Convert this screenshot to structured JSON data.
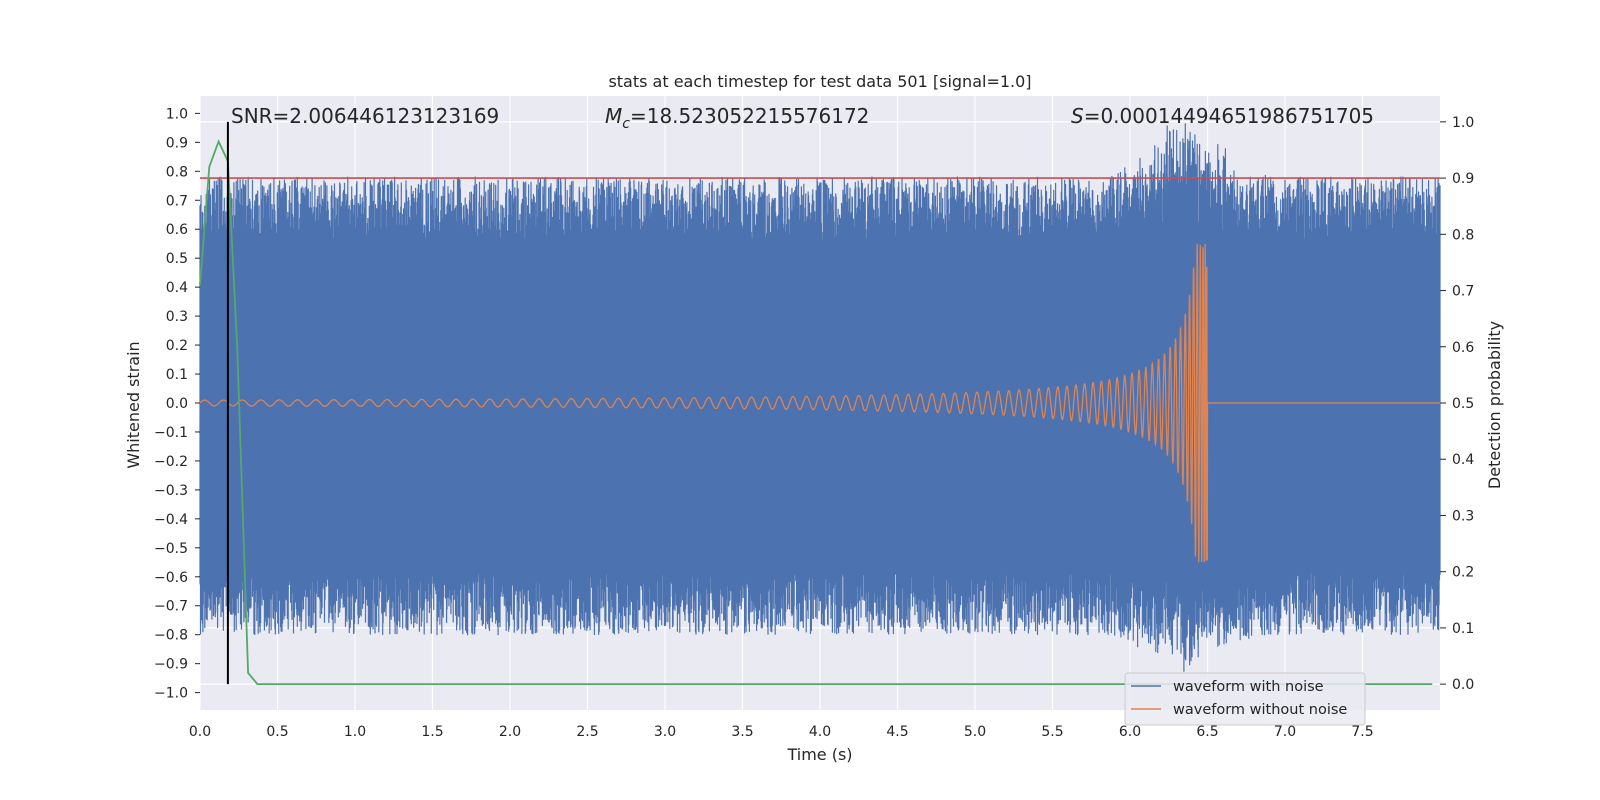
{
  "chart_data": {
    "type": "line",
    "title": "stats at each timestep for test data 501 [signal=1.0]",
    "xlabel": "Time (s)",
    "ylabel_left": "Whitened strain",
    "ylabel_right": "Detection probability",
    "xlim": [
      0.0,
      8.0
    ],
    "ylim_left": [
      -1.06,
      1.06
    ],
    "ylim_right": [
      -0.046,
      1.046
    ],
    "x_ticks": [
      0.0,
      0.5,
      1.0,
      1.5,
      2.0,
      2.5,
      3.0,
      3.5,
      4.0,
      4.5,
      5.0,
      5.5,
      6.0,
      6.5,
      7.0,
      7.5
    ],
    "x_tick_labels": [
      "0.0",
      "0.5",
      "1.0",
      "1.5",
      "2.0",
      "2.5",
      "3.0",
      "3.5",
      "4.0",
      "4.5",
      "5.0",
      "5.5",
      "6.0",
      "6.5",
      "7.0",
      "7.5"
    ],
    "y_left_ticks": [
      1.0,
      0.9,
      0.8,
      0.7,
      0.6,
      0.5,
      0.4,
      0.3,
      0.2,
      0.1,
      0.0,
      -0.1,
      -0.2,
      -0.3,
      -0.4,
      -0.5,
      -0.6,
      -0.7,
      -0.8,
      -0.9,
      -1.0
    ],
    "y_left_tick_labels": [
      "1.0",
      "0.9",
      "0.8",
      "0.7",
      "0.6",
      "0.5",
      "0.4",
      "0.3",
      "0.2",
      "0.1",
      "0.0",
      "−0.1",
      "−0.2",
      "−0.3",
      "−0.4",
      "−0.5",
      "−0.6",
      "−0.7",
      "−0.8",
      "−0.9",
      "−1.0"
    ],
    "y_right_ticks": [
      1.0,
      0.9,
      0.8,
      0.7,
      0.6,
      0.5,
      0.4,
      0.3,
      0.2,
      0.1,
      0.0
    ],
    "y_right_tick_labels": [
      "1.0",
      "0.9",
      "0.8",
      "0.7",
      "0.6",
      "0.5",
      "0.4",
      "0.3",
      "0.2",
      "0.1",
      "0.0"
    ],
    "grid": true,
    "series": [
      {
        "name": "waveform with noise",
        "axis": "left",
        "color": "#4c72b0",
        "envelope": {
          "typical_max": 0.78,
          "typical_min": -0.8,
          "burst_time": 6.35,
          "burst_max": 1.0,
          "burst_min": -0.93
        }
      },
      {
        "name": "waveform without noise",
        "axis": "left",
        "color": "#dd8452",
        "chirp": {
          "merger_time": 6.5,
          "peak_amplitude": 0.55,
          "min_amplitude_at_start": 0.01,
          "start_frequency_hz": 18,
          "after_merger_value": 0.0
        }
      },
      {
        "name": "detection probability",
        "axis": "right",
        "color": "#55a868",
        "points": [
          [
            0.0,
            0.71
          ],
          [
            0.06,
            0.92
          ],
          [
            0.12,
            0.965
          ],
          [
            0.18,
            0.93
          ],
          [
            0.24,
            0.6
          ],
          [
            0.31,
            0.02
          ],
          [
            0.37,
            0.0
          ],
          [
            7.95,
            0.0
          ]
        ]
      }
    ],
    "threshold_line": {
      "axis": "right",
      "value": 0.9,
      "color": "#c44e52"
    },
    "vertical_marker": {
      "x": 0.18,
      "color": "#000000"
    },
    "annotations": {
      "snr": "SNR=2.006446123123169",
      "mc_symbol": "M",
      "mc_subscript": "c",
      "mc_value": "=18.523052215576172",
      "s_symbol": "S",
      "s_value": "=0.00014494651986751705"
    },
    "legend": {
      "position": "lower-right",
      "entries": [
        {
          "label": "waveform with noise",
          "color": "#4c72b0"
        },
        {
          "label": "waveform without noise",
          "color": "#dd8452"
        }
      ]
    }
  }
}
